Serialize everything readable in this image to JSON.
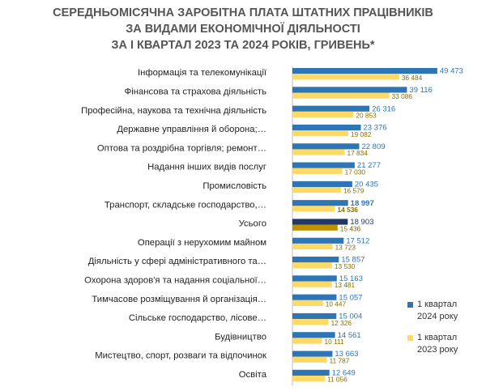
{
  "title": {
    "line1": "СЕРЕДНЬОМІСЯЧНА ЗАРОБІТНА ПЛАТА ШТАТНИХ ПРАЦІВНИКІВ",
    "line2": "ЗА ВИДАМИ ЕКОНОМІЧНОЇ ДІЯЛЬНОСТІ",
    "line3": "ЗА І КВАРТАЛ 2023 ТА 2024 РОКІВ, ГРИВЕНЬ*"
  },
  "colors": {
    "series_2024": "#2e75b6",
    "series_2023": "#ffd966",
    "total_2024": "#1f3864",
    "total_2023": "#bf9000",
    "label_2024": "#2e75b6",
    "label_2023": "#8a6d00",
    "label_total_2024": "#1f3864",
    "label_total_2023": "#7f6000"
  },
  "legend": [
    {
      "name": "1 квартал\n2024 року",
      "line1": "1 квартал",
      "line2": "2024 року"
    },
    {
      "name": "1 квартал\n2023 року",
      "line1": "1 квартал",
      "line2": "2023 року"
    }
  ],
  "chart_data": {
    "type": "bar",
    "orientation": "horizontal",
    "title": "СЕРЕДНЬОМІСЯЧНА ЗАРОБІТНА ПЛАТА ШТАТНИХ ПРАЦІВНИКІВ ЗА ВИДАМИ ЕКОНОМІЧНОЇ ДІЯЛЬНОСТІ ЗА І КВАРТАЛ 2023 ТА 2024 РОКІВ, ГРИВЕНЬ*",
    "categories": [
      "Інформація та телекомунікації",
      "Фінансова та страхова діяльність",
      "Професійна, наукова та технічна діяльність",
      "Державне управління й оборона;…",
      "Оптова та роздрібна торгівля; ремонт…",
      "Надання інших видів послуг",
      "Промисловість",
      "Транспорт, складське господарство,…",
      "Усього",
      "Операції з нерухомим майном",
      "Діяльність у сфері адміністративного та…",
      "Охорона здоров'я та надання соціальної…",
      "Тимчасове розміщування й організація…",
      "Сільське господарство, лісове…",
      "Будівництво",
      "Мистецтво, спорт, розваги та відпочинок",
      "Освіта"
    ],
    "series": [
      {
        "name": "1 квартал 2024 року",
        "values": [
          49473,
          39116,
          26316,
          23376,
          22809,
          21277,
          20435,
          18997,
          18903,
          17512,
          15857,
          15163,
          15057,
          15004,
          14561,
          13663,
          12649
        ],
        "labels": [
          "49 473",
          "39 116",
          "26 316",
          "23 376",
          "22 809",
          "21 277",
          "20 435",
          "18 997",
          "18 903",
          "17 512",
          "15 857",
          "15 163",
          "15 057",
          "15 004",
          "14 561",
          "13 663",
          "12 649"
        ]
      },
      {
        "name": "1 квартал 2023 року",
        "values": [
          36484,
          33086,
          20853,
          19082,
          17834,
          17030,
          16579,
          14536,
          15436,
          13723,
          13530,
          13481,
          10447,
          12326,
          10111,
          11787,
          11056
        ],
        "labels": [
          "36 484",
          "33 086",
          "20 853",
          "19 082",
          "17 834",
          "17 030",
          "16 579",
          "14 536",
          "15 436",
          "13 723",
          "13 530",
          "13 481",
          "10 447",
          "12 326",
          "10 111",
          "11 787",
          "11 056"
        ]
      }
    ],
    "highlight_category_index": 8,
    "bold_label_category_index": 7,
    "xlim": [
      0,
      52000
    ],
    "grid": false,
    "legend_position": "right"
  }
}
